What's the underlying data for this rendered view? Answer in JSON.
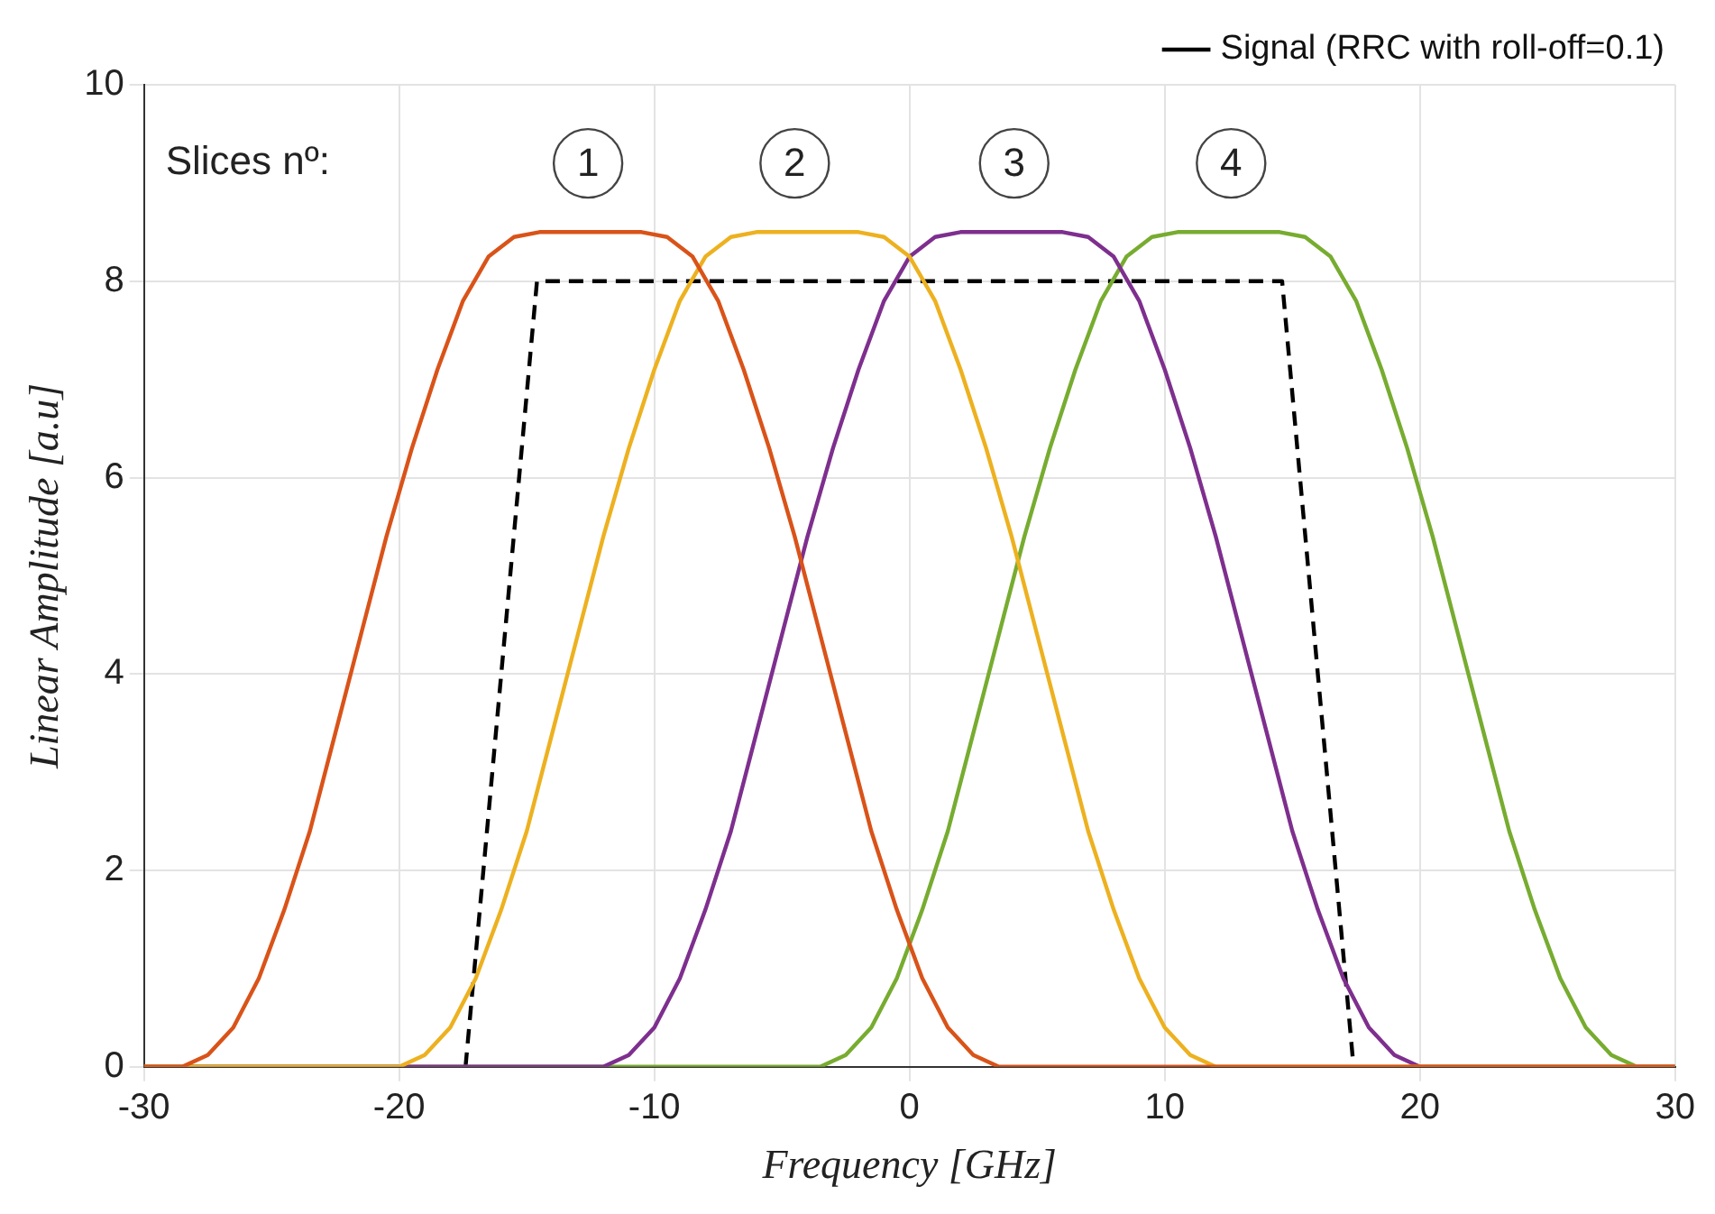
{
  "chart_data": {
    "type": "line",
    "xlabel": "Frequency [GHz]",
    "ylabel": "Linear Amplitude [a.u]",
    "xlim": [
      -30,
      30
    ],
    "xticks": [
      -30,
      -20,
      -10,
      0,
      10,
      20,
      30
    ],
    "ylim": [
      0,
      10
    ],
    "yticks": [
      0,
      2,
      4,
      6,
      8,
      10
    ],
    "grid": true,
    "legend": "top right",
    "marker": "none",
    "series": [
      {
        "color": "#d95319",
        "x": [
          -30,
          -28.5,
          -27.5,
          -26.5,
          -25.5,
          -24.5,
          -23.5,
          -22.5,
          -21.5,
          -20.5,
          -19.5,
          -18.5,
          -17.5,
          -16.5,
          -15.5,
          -14.5,
          -10.5,
          -9.5,
          -8.5,
          -7.5,
          -6.5,
          -5.5,
          -4.5,
          -3.5,
          -2.5,
          -1.5,
          -0.5,
          0.5,
          1.5,
          2.5,
          3.5,
          30
        ],
        "values": [
          0,
          0,
          0.12,
          0.4,
          0.9,
          1.6,
          2.4,
          3.4,
          4.4,
          5.4,
          6.3,
          7.1,
          7.8,
          8.25,
          8.45,
          8.5,
          8.5,
          8.45,
          8.25,
          7.8,
          7.1,
          6.3,
          5.4,
          4.4,
          3.4,
          2.4,
          1.6,
          0.9,
          0.4,
          0.12,
          0,
          0
        ]
      },
      {
        "color": "#edb120",
        "x": [
          -30,
          -20,
          -19,
          -18,
          -17,
          -16,
          -15,
          -14,
          -13,
          -12,
          -11,
          -10,
          -9,
          -8,
          -7,
          -6,
          -2,
          -1,
          0,
          1,
          2,
          3,
          4,
          5,
          6,
          7,
          8,
          9,
          10,
          11,
          12,
          30
        ],
        "values": [
          0,
          0,
          0.12,
          0.4,
          0.9,
          1.6,
          2.4,
          3.4,
          4.4,
          5.4,
          6.3,
          7.1,
          7.8,
          8.25,
          8.45,
          8.5,
          8.5,
          8.45,
          8.25,
          7.8,
          7.1,
          6.3,
          5.4,
          4.4,
          3.4,
          2.4,
          1.6,
          0.9,
          0.4,
          0.12,
          0,
          0
        ]
      },
      {
        "color": "#7e2f8e",
        "x": [
          -30,
          -12,
          -11,
          -10,
          -9,
          -8,
          -7,
          -6,
          -5,
          -4,
          -3,
          -2,
          -1,
          0,
          1,
          2,
          6,
          7,
          8,
          9,
          10,
          11,
          12,
          13,
          14,
          15,
          16,
          17,
          18,
          19,
          20,
          30
        ],
        "values": [
          0,
          0,
          0.12,
          0.4,
          0.9,
          1.6,
          2.4,
          3.4,
          4.4,
          5.4,
          6.3,
          7.1,
          7.8,
          8.25,
          8.45,
          8.5,
          8.5,
          8.45,
          8.25,
          7.8,
          7.1,
          6.3,
          5.4,
          4.4,
          3.4,
          2.4,
          1.6,
          0.9,
          0.4,
          0.12,
          0,
          0
        ]
      },
      {
        "color": "#77ac30",
        "x": [
          -30,
          -3.5,
          -2.5,
          -1.5,
          -0.5,
          0.5,
          1.5,
          2.5,
          3.5,
          4.5,
          5.5,
          6.5,
          7.5,
          8.5,
          9.5,
          10.5,
          14.5,
          15.5,
          16.5,
          17.5,
          18.5,
          19.5,
          20.5,
          21.5,
          22.5,
          23.5,
          24.5,
          25.5,
          26.5,
          27.5,
          28.5,
          30
        ],
        "values": [
          0,
          0,
          0.12,
          0.4,
          0.9,
          1.6,
          2.4,
          3.4,
          4.4,
          5.4,
          6.3,
          7.1,
          7.8,
          8.25,
          8.45,
          8.5,
          8.5,
          8.45,
          8.25,
          7.8,
          7.1,
          6.3,
          5.4,
          4.4,
          3.4,
          2.4,
          1.6,
          0.9,
          0.4,
          0.12,
          0,
          0
        ]
      },
      {
        "name": "Signal (RRC with roll-off=0.1)",
        "color": "#000000",
        "line_style": "dashed",
        "x": [
          -17.4,
          -14.6,
          14.6,
          17.4
        ],
        "values": [
          0,
          8,
          8,
          0
        ]
      }
    ],
    "annotations": [
      "Slices nº:",
      {
        "text": "1",
        "x": -12.6,
        "y": 9.2
      },
      {
        "text": "2",
        "x": -4.5,
        "y": 9.2
      },
      {
        "text": "3",
        "x": 4.1,
        "y": 9.2
      },
      {
        "text": "4",
        "x": 12.6,
        "y": 9.2
      }
    ]
  }
}
